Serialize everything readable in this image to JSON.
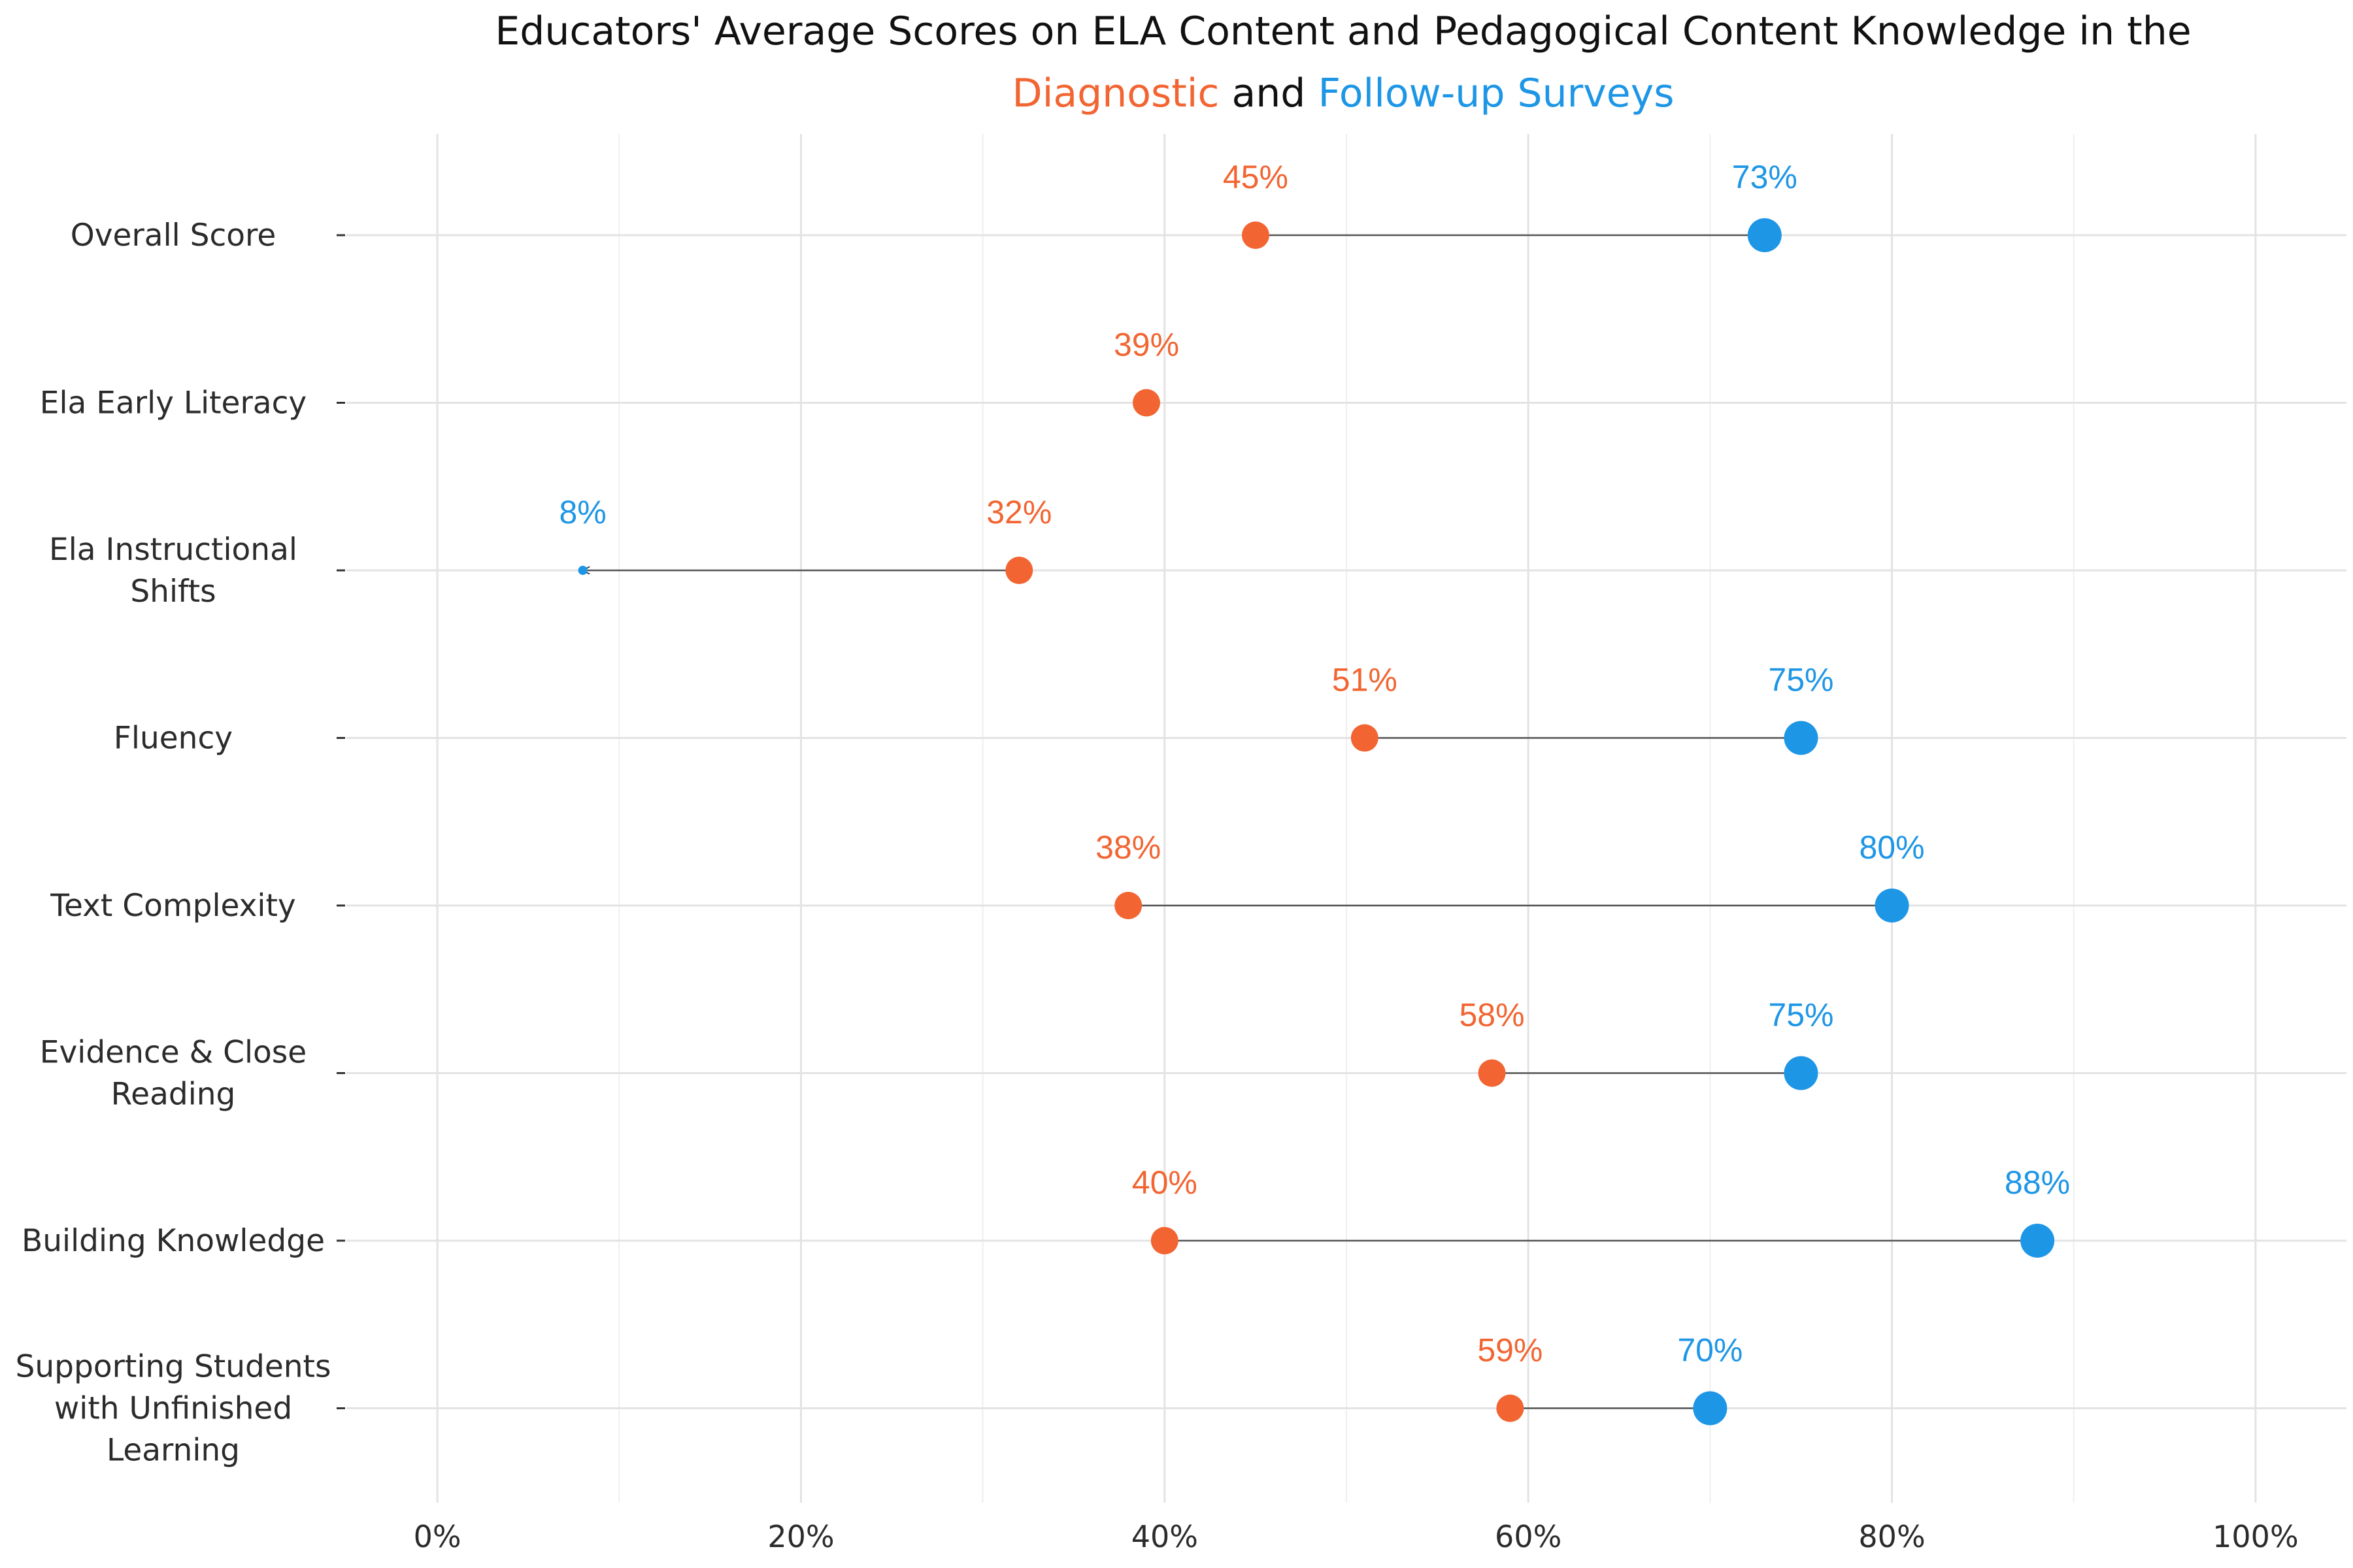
{
  "chart_data": {
    "type": "dumbbell",
    "title_parts": [
      {
        "text": "Educators' Average Scores on ELA Content and Pedagogical Content Knowledge in the",
        "color": "#111111",
        "line": 1
      },
      {
        "text": "Diagnostic",
        "color": "#F26532",
        "line": 2
      },
      {
        "text": " and ",
        "color": "#111111",
        "line": 2
      },
      {
        "text": "Follow-up Surveys",
        "color": "#1E96E6",
        "line": 2
      }
    ],
    "series": [
      {
        "name": "Diagnostic",
        "color": "#F26532"
      },
      {
        "name": "Follow-up Surveys",
        "color": "#1E96E6"
      }
    ],
    "xlim": [
      -5,
      105
    ],
    "x_ticks": [
      0,
      20,
      40,
      60,
      80,
      100
    ],
    "x_tick_labels": [
      "0%",
      "20%",
      "40%",
      "60%",
      "80%",
      "100%"
    ],
    "grid": true,
    "rows": [
      {
        "category": [
          "Overall Score"
        ],
        "diagnostic": 45,
        "diagnostic_label": "45%",
        "followup": 73,
        "followup_label": "73%"
      },
      {
        "category": [
          "Ela Early Literacy"
        ],
        "diagnostic": 39,
        "diagnostic_label": "39%",
        "followup": null,
        "followup_label": null
      },
      {
        "category": [
          "Ela Instructional",
          "Shifts"
        ],
        "diagnostic": 32,
        "diagnostic_label": "32%",
        "followup": 8,
        "followup_label": "8%"
      },
      {
        "category": [
          "Fluency"
        ],
        "diagnostic": 51,
        "diagnostic_label": "51%",
        "followup": 75,
        "followup_label": "75%"
      },
      {
        "category": [
          "Text Complexity"
        ],
        "diagnostic": 38,
        "diagnostic_label": "38%",
        "followup": 80,
        "followup_label": "80%"
      },
      {
        "category": [
          "Evidence & Close",
          "Reading"
        ],
        "diagnostic": 58,
        "diagnostic_label": "58%",
        "followup": 75,
        "followup_label": "75%"
      },
      {
        "category": [
          "Building Knowledge"
        ],
        "diagnostic": 40,
        "diagnostic_label": "40%",
        "followup": 88,
        "followup_label": "88%"
      },
      {
        "category": [
          "Supporting Students",
          "with Unfinished",
          "Learning"
        ],
        "diagnostic": 59,
        "diagnostic_label": "59%",
        "followup": 70,
        "followup_label": "70%"
      }
    ]
  }
}
